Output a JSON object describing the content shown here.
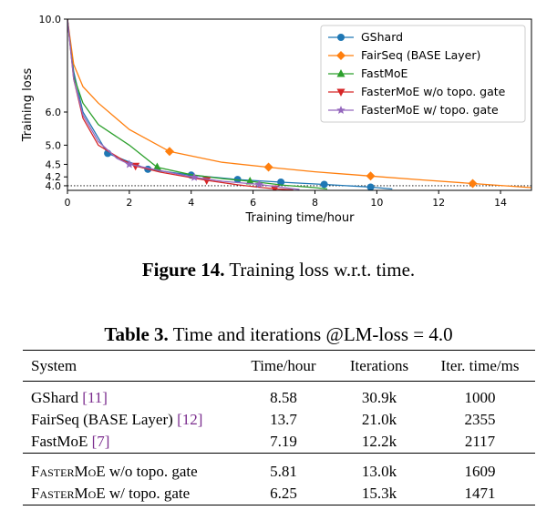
{
  "figure": {
    "caption_label": "Figure 14.",
    "caption_text": "Training loss w.r.t. time."
  },
  "chart_data": {
    "type": "line",
    "xlabel": "Training time/hour",
    "ylabel": "Training loss",
    "xlim": [
      0,
      15
    ],
    "ylim": [
      3.9,
      10.0
    ],
    "y_scale": "log",
    "x_ticks": [
      "0",
      "2",
      "4",
      "6",
      "8",
      "10",
      "12",
      "14"
    ],
    "y_ticks": [
      "10.0",
      "6.0",
      "5.0",
      "4.5",
      "4.2",
      "4.0"
    ],
    "reference_line": {
      "y": 4.0,
      "style": "dotted"
    },
    "legend_position": "top-right",
    "series": [
      {
        "name": "GShard",
        "color": "#1f77b4",
        "marker": "circle",
        "x": [
          0,
          0.2,
          0.5,
          1.0,
          1.3,
          2.6,
          4.0,
          5.5,
          6.9,
          8.3,
          9.8,
          10.5
        ],
        "y": [
          10.0,
          7.5,
          6.0,
          5.2,
          4.78,
          4.38,
          4.24,
          4.14,
          4.08,
          4.03,
          3.97,
          3.93
        ],
        "markers_x": [
          1.3,
          2.6,
          4.0,
          5.5,
          6.9,
          8.3,
          9.8
        ]
      },
      {
        "name": "FairSeq (BASE Layer)",
        "color": "#ff7f0e",
        "marker": "diamond",
        "x": [
          0,
          0.2,
          0.5,
          1.0,
          2.0,
          3.3,
          5.0,
          6.5,
          8.0,
          9.8,
          11.5,
          13.1,
          15.0
        ],
        "y": [
          10.0,
          7.8,
          6.9,
          6.3,
          5.45,
          4.83,
          4.55,
          4.43,
          4.32,
          4.22,
          4.13,
          4.05,
          3.96
        ],
        "markers_x": [
          3.3,
          6.5,
          9.8,
          13.1
        ]
      },
      {
        "name": "FastMoE",
        "color": "#2ca02c",
        "marker": "triangle-up",
        "x": [
          0,
          0.2,
          0.5,
          1.0,
          2.0,
          2.9,
          4.0,
          5.0,
          5.9,
          7.0,
          8.0,
          8.4
        ],
        "y": [
          10.0,
          7.3,
          6.3,
          5.6,
          5.0,
          4.43,
          4.25,
          4.16,
          4.1,
          4.01,
          3.96,
          3.93
        ],
        "markers_x": [
          2.9,
          5.9
        ]
      },
      {
        "name": "FasterMoE w/o topo. gate",
        "color": "#d62728",
        "marker": "triangle-down",
        "x": [
          0,
          0.2,
          0.5,
          1.0,
          1.8,
          2.2,
          3.0,
          4.5,
          5.5,
          6.3,
          6.8,
          7.3
        ],
        "y": [
          10.0,
          7.2,
          5.8,
          5.0,
          4.6,
          4.46,
          4.31,
          4.12,
          4.02,
          3.96,
          3.93,
          3.91
        ],
        "markers_x": [
          2.2,
          4.5,
          6.7
        ]
      },
      {
        "name": "FasterMoE w/ topo. gate",
        "color": "#9467bd",
        "marker": "star",
        "x": [
          0,
          0.2,
          0.5,
          1.0,
          1.6,
          2.0,
          3.0,
          4.1,
          5.0,
          6.2,
          7.0,
          7.5
        ],
        "y": [
          10.0,
          7.2,
          5.9,
          5.1,
          4.65,
          4.5,
          4.35,
          4.19,
          4.1,
          4.03,
          3.96,
          3.92
        ],
        "markers_x": [
          2.0,
          4.1,
          6.2
        ]
      }
    ]
  },
  "table": {
    "caption_label": "Table 3.",
    "caption_text": "Time and iterations @LM-loss = 4.0",
    "headers": [
      "System",
      "Time/hour",
      "Iterations",
      "Iter. time/ms"
    ],
    "rows": [
      {
        "system": "GShard",
        "cite": "[11]",
        "time": "8.58",
        "iters": "30.9k",
        "iter_time": "1000"
      },
      {
        "system": "FairSeq (BASE Layer)",
        "cite": "[12]",
        "time": "13.7",
        "iters": "21.0k",
        "iter_time": "2355"
      },
      {
        "system": "FastMoE",
        "cite": "[7]",
        "time": "7.19",
        "iters": "12.2k",
        "iter_time": "2117"
      },
      {
        "system": "FasterMoE",
        "suffix": " w/o topo. gate",
        "time": "5.81",
        "iters": "13.0k",
        "iter_time": "1609"
      },
      {
        "system": "FasterMoE",
        "suffix": " w/ topo. gate",
        "time": "6.25",
        "iters": "15.3k",
        "iter_time": "1471"
      }
    ]
  }
}
